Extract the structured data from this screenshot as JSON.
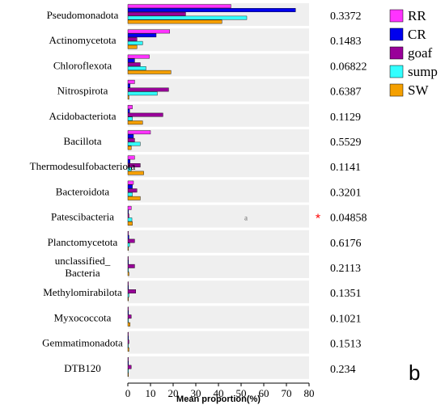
{
  "panel_label": "b",
  "chart_data": {
    "type": "bar",
    "orientation": "horizontal",
    "xlabel": "Mean proportion(%)",
    "xlim": [
      0,
      80
    ],
    "xticks": [
      0,
      10,
      20,
      30,
      40,
      50,
      60,
      70,
      80
    ],
    "categories": [
      "Pseudomonadota",
      "Actinomycetota",
      "Chloroflexota",
      "Nitrospirota",
      "Acidobacteriota",
      "Bacillota",
      "Thermodesulfobacteriota",
      "Bacteroidota",
      "Patescibacteria",
      "Planctomycetota",
      "unclassified_ Bacteria",
      "Methylomirabilota",
      "Myxococcota",
      "Gemmatimonadota",
      "DTB120"
    ],
    "series": [
      {
        "name": "RR",
        "color": "#ff33ff",
        "values": [
          45.5,
          18.5,
          9.5,
          3.0,
          2.0,
          10.0,
          3.0,
          2.5,
          1.5,
          0.3,
          0.2,
          0.2,
          0.3,
          0.2,
          0.2
        ]
      },
      {
        "name": "CR",
        "color": "#0000ee",
        "values": [
          74.0,
          12.5,
          3.0,
          1.0,
          0.8,
          2.5,
          1.0,
          2.0,
          0.3,
          0.5,
          0.2,
          0.2,
          0.3,
          0.3,
          0.2
        ]
      },
      {
        "name": "goaf",
        "color": "#990099",
        "values": [
          25.5,
          4.0,
          5.5,
          18.0,
          15.5,
          3.0,
          5.5,
          4.0,
          0.5,
          3.0,
          3.0,
          3.5,
          1.5,
          0.5,
          1.5
        ]
      },
      {
        "name": "sump",
        "color": "#33ffff",
        "values": [
          52.5,
          6.5,
          8.0,
          13.0,
          2.0,
          5.5,
          1.5,
          2.0,
          1.8,
          0.8,
          0.3,
          0.5,
          0.3,
          0.3,
          0.2
        ]
      },
      {
        "name": "SW",
        "color": "#f5a000",
        "values": [
          41.5,
          4.0,
          19.0,
          0.5,
          6.5,
          1.5,
          7.0,
          5.5,
          2.0,
          0.3,
          0.5,
          0.2,
          1.0,
          0.5,
          0.2
        ]
      }
    ],
    "p_values": [
      "0.3372",
      "0.1483",
      "0.06822",
      "0.6387",
      "0.1129",
      "0.5529",
      "0.1141",
      "0.3201",
      "0.04858",
      "0.6176",
      "0.2113",
      "0.1351",
      "0.1021",
      "0.1513",
      "0.234"
    ],
    "significance_markers": [
      {
        "category": "Patescibacteria",
        "marker": "*",
        "color": "#ff0000",
        "group_letter": "a"
      }
    ],
    "legend_placement": "top-right",
    "row_background": "#efefef"
  }
}
